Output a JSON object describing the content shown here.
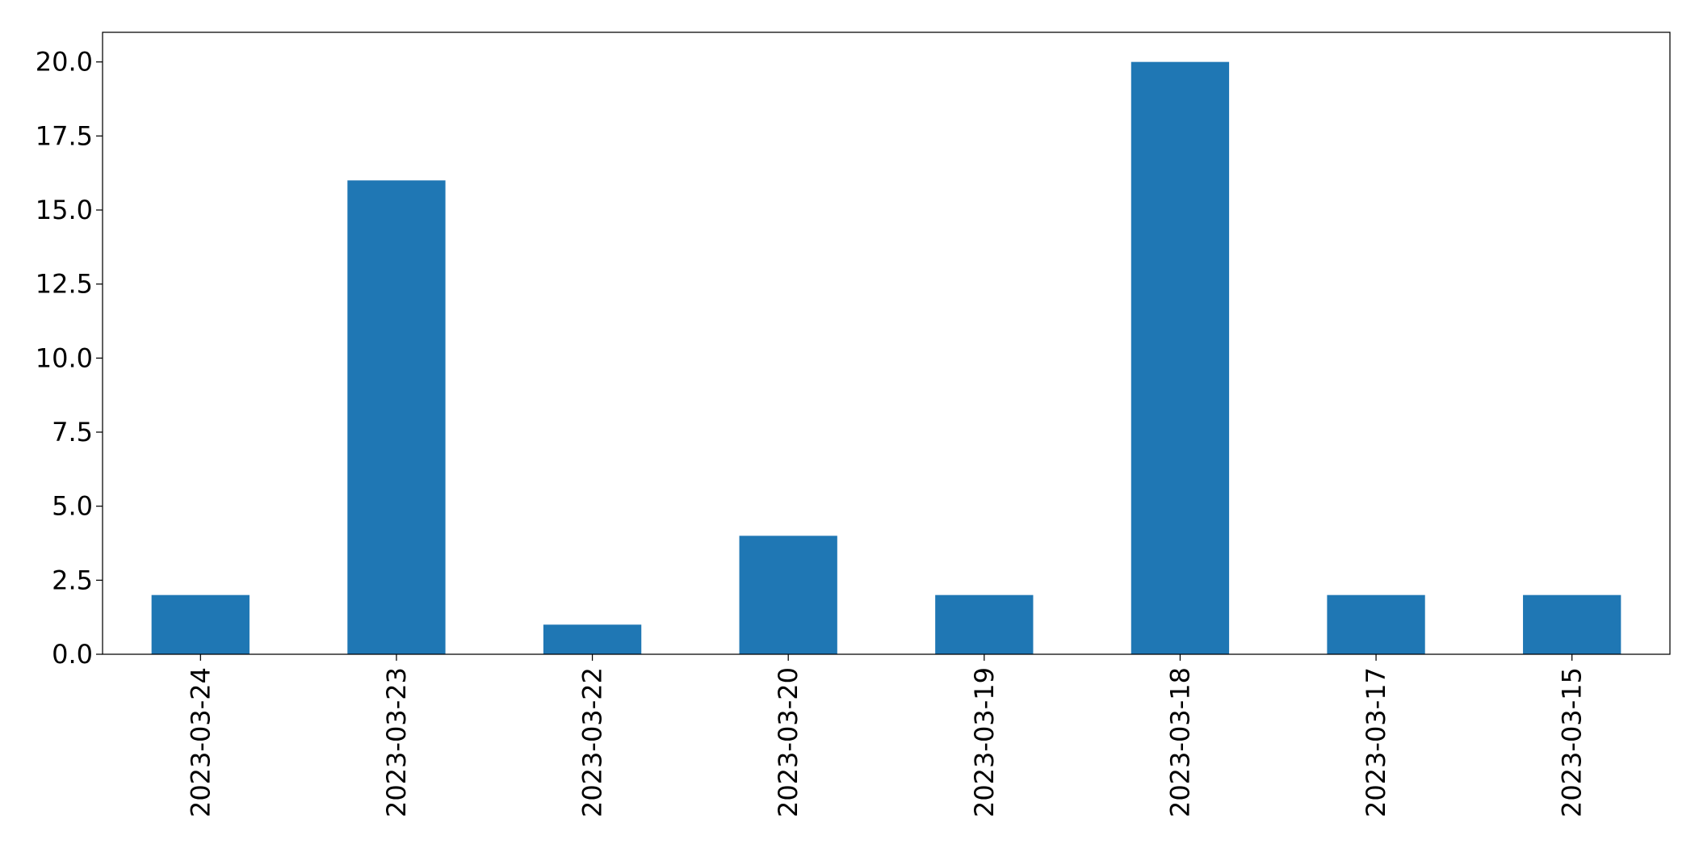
{
  "chart_data": {
    "type": "bar",
    "title": "",
    "xlabel": "",
    "ylabel": "",
    "categories": [
      "2023-03-24",
      "2023-03-23",
      "2023-03-22",
      "2023-03-20",
      "2023-03-19",
      "2023-03-18",
      "2023-03-17",
      "2023-03-15"
    ],
    "values": [
      2,
      16,
      1,
      4,
      2,
      20,
      2,
      2
    ],
    "ylim": [
      0,
      21
    ],
    "yticks": [
      "0.0",
      "2.5",
      "5.0",
      "7.5",
      "10.0",
      "12.5",
      "15.0",
      "17.5",
      "20.0"
    ],
    "bar_color": "#1f77b4",
    "grid": false,
    "legend": false
  }
}
